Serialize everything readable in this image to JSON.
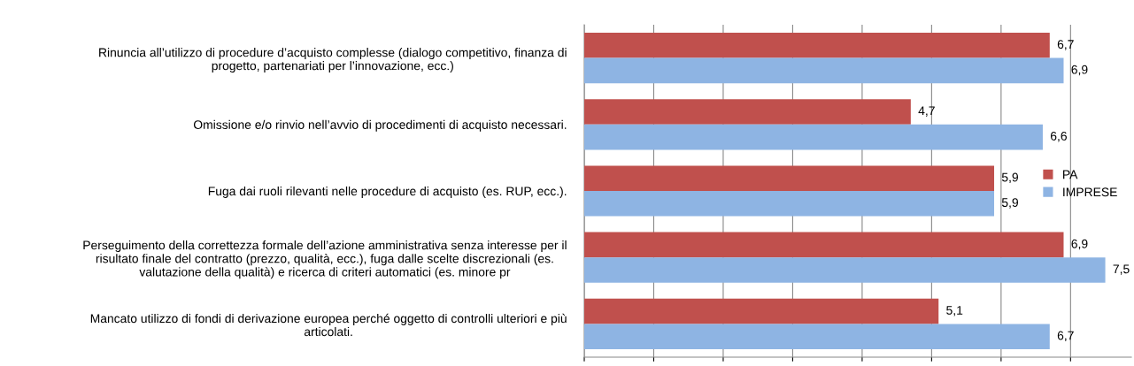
{
  "chart_data": {
    "type": "bar",
    "orientation": "horizontal",
    "categories": [
      "Rinuncia all’utilizzo di procedure d’acquisto complesse (dialogo competitivo, finanza di\nprogetto, partenariati per l’innovazione, ecc.)",
      "Omissione e/o rinvio nell’avvio di procedimenti di acquisto necessari.",
      "Fuga dai ruoli rilevanti nelle procedure di acquisto (es. RUP, ecc.).",
      "Perseguimento della correttezza formale dell’azione amministrativa senza interesse per il\nrisultato finale del contratto (prezzo, qualità, ecc.), fuga dalle scelte discrezionali (es.\nvalutazione della qualità) e ricerca di criteri automatici (es. minore pr",
      "Mancato utilizzo di fondi di derivazione europea perché oggetto di controlli ulteriori e più\narticolati."
    ],
    "series": [
      {
        "name": "PA",
        "color": "#c0504d",
        "values": [
          6.7,
          4.7,
          5.9,
          6.9,
          5.1
        ],
        "value_labels": [
          "6,7",
          "4,7",
          "5,9",
          "6,9",
          "5,1"
        ]
      },
      {
        "name": "IMPRESE",
        "color": "#8eb4e3",
        "values": [
          6.9,
          6.6,
          5.9,
          7.5,
          6.7
        ],
        "value_labels": [
          "6,9",
          "6,6",
          "5,9",
          "7,5",
          "6,7"
        ]
      }
    ],
    "tick_labels": "y",
    "grid": "x",
    "legend": "right"
  }
}
